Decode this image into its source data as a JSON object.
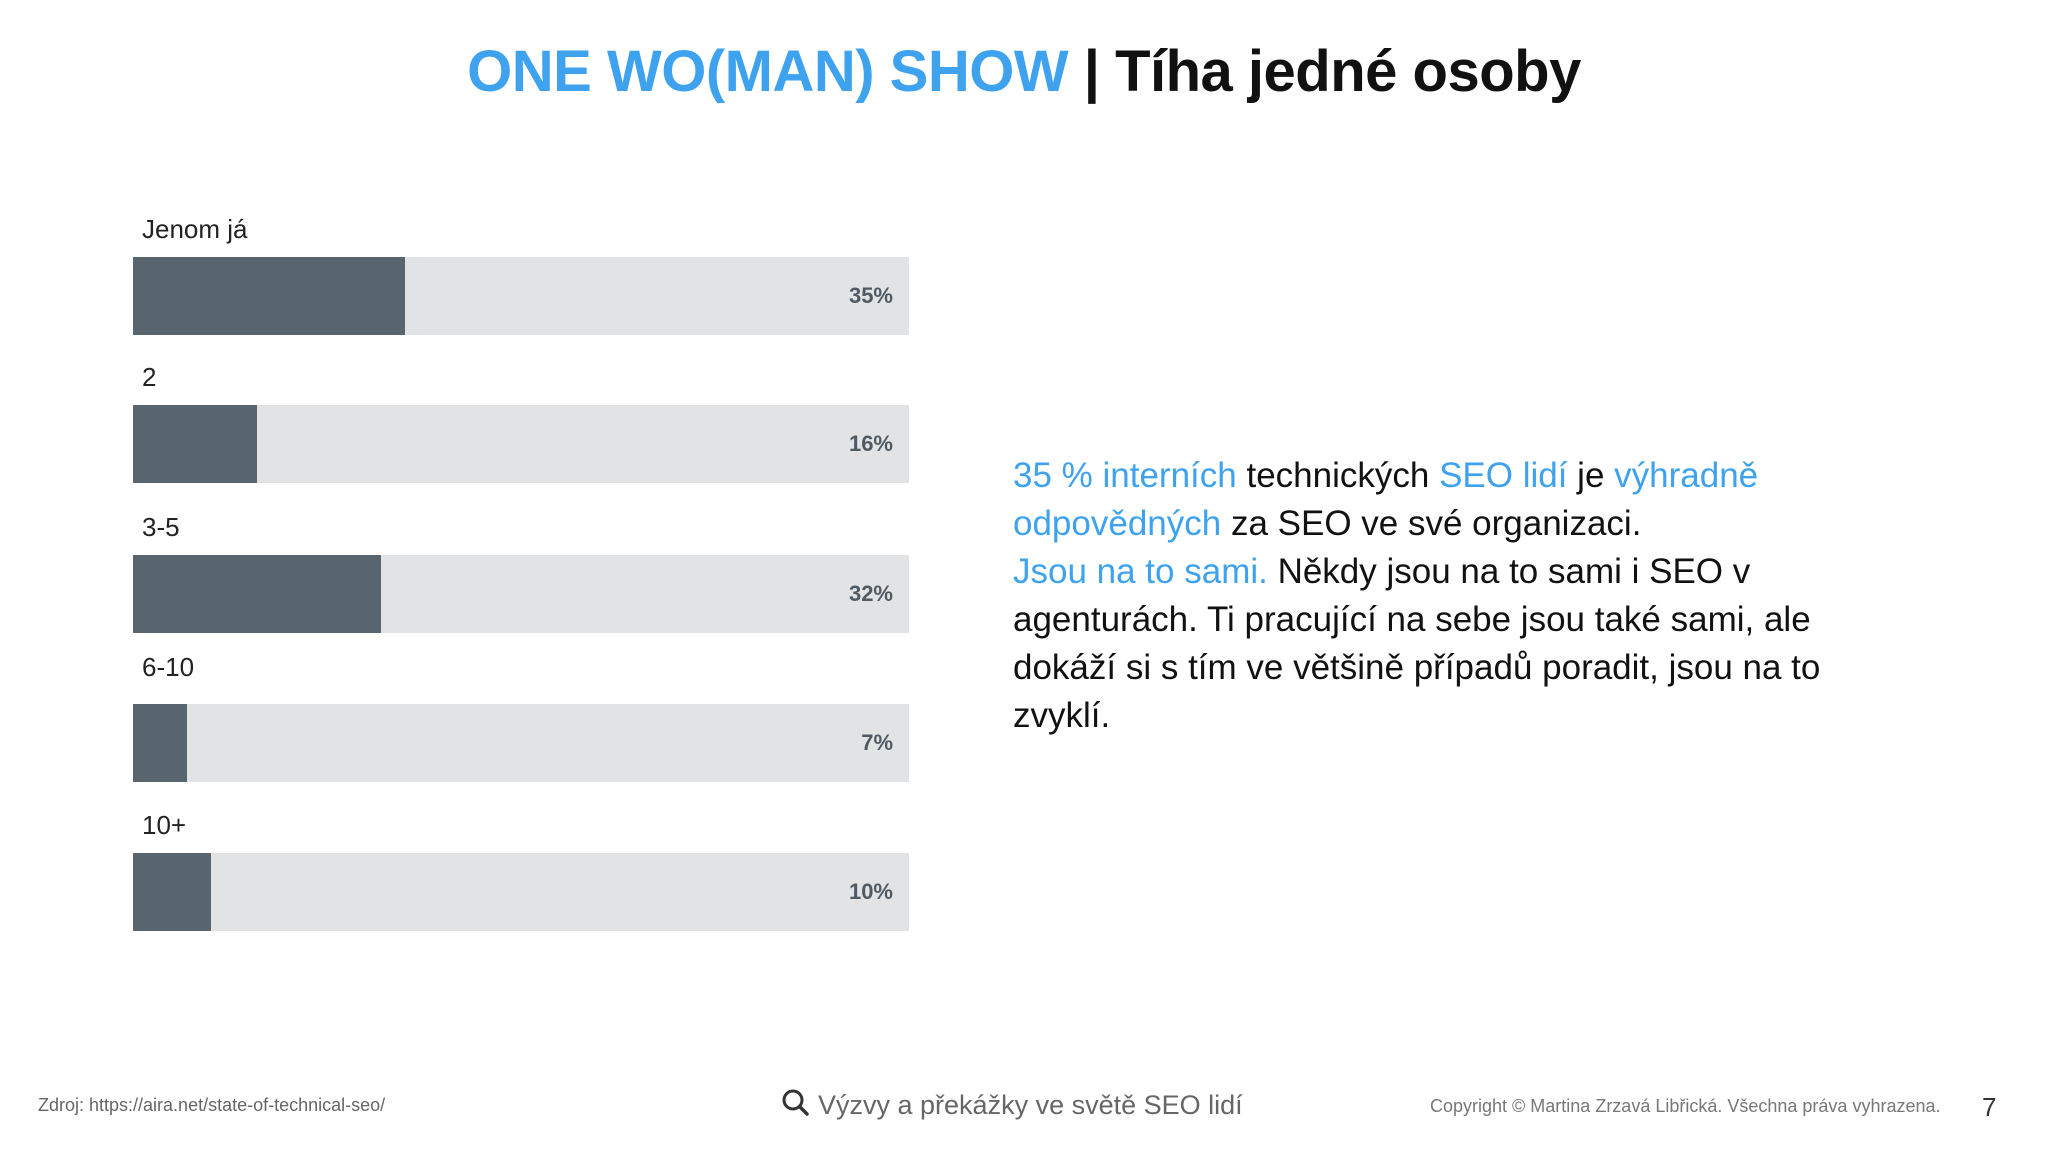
{
  "title": {
    "accent": "ONE WO(MAN) SHOW",
    "separator": "|",
    "main": "Tíha jedné osoby"
  },
  "chart_data": {
    "type": "bar",
    "orientation": "horizontal",
    "categories": [
      "Jenom já",
      "2",
      "3-5",
      "6-10",
      "10+"
    ],
    "values": [
      35,
      16,
      32,
      7,
      10
    ],
    "value_labels": [
      "35%",
      "16%",
      "32%",
      "7%",
      "10%"
    ],
    "unit": "%",
    "xlim": [
      0,
      100
    ],
    "colors": {
      "fill": "#58656f",
      "track": "#e1e3e5",
      "value_text": "#4f5a63"
    }
  },
  "body": {
    "p1_a": "35 % interních",
    "p1_b": " technických ",
    "p1_c": "SEO lidí",
    "p1_d": " je ",
    "p1_e": "výhradně odpovědných",
    "p1_f": " za SEO ve své organizaci.",
    "p2_a": "Jsou na to sami.",
    "p2_b": " Někdy jsou na to sami i SEO v agenturách. Ti pracující na sebe jsou také sami, ale dokáží si s tím ve většině případů poradit, jsou na to zvyklí."
  },
  "footer": {
    "source": "Zdroj: https://aira.net/state-of-technical-seo/",
    "center": "Výzvy a překážky ve světě SEO lidí",
    "center_icon": "search-icon",
    "copyright": "Copyright © Martina Zrzavá Libřická. Všechna práva vyhrazena.",
    "page_number": "7"
  },
  "colors": {
    "accent": "#3ea2ee",
    "text": "#111111"
  }
}
